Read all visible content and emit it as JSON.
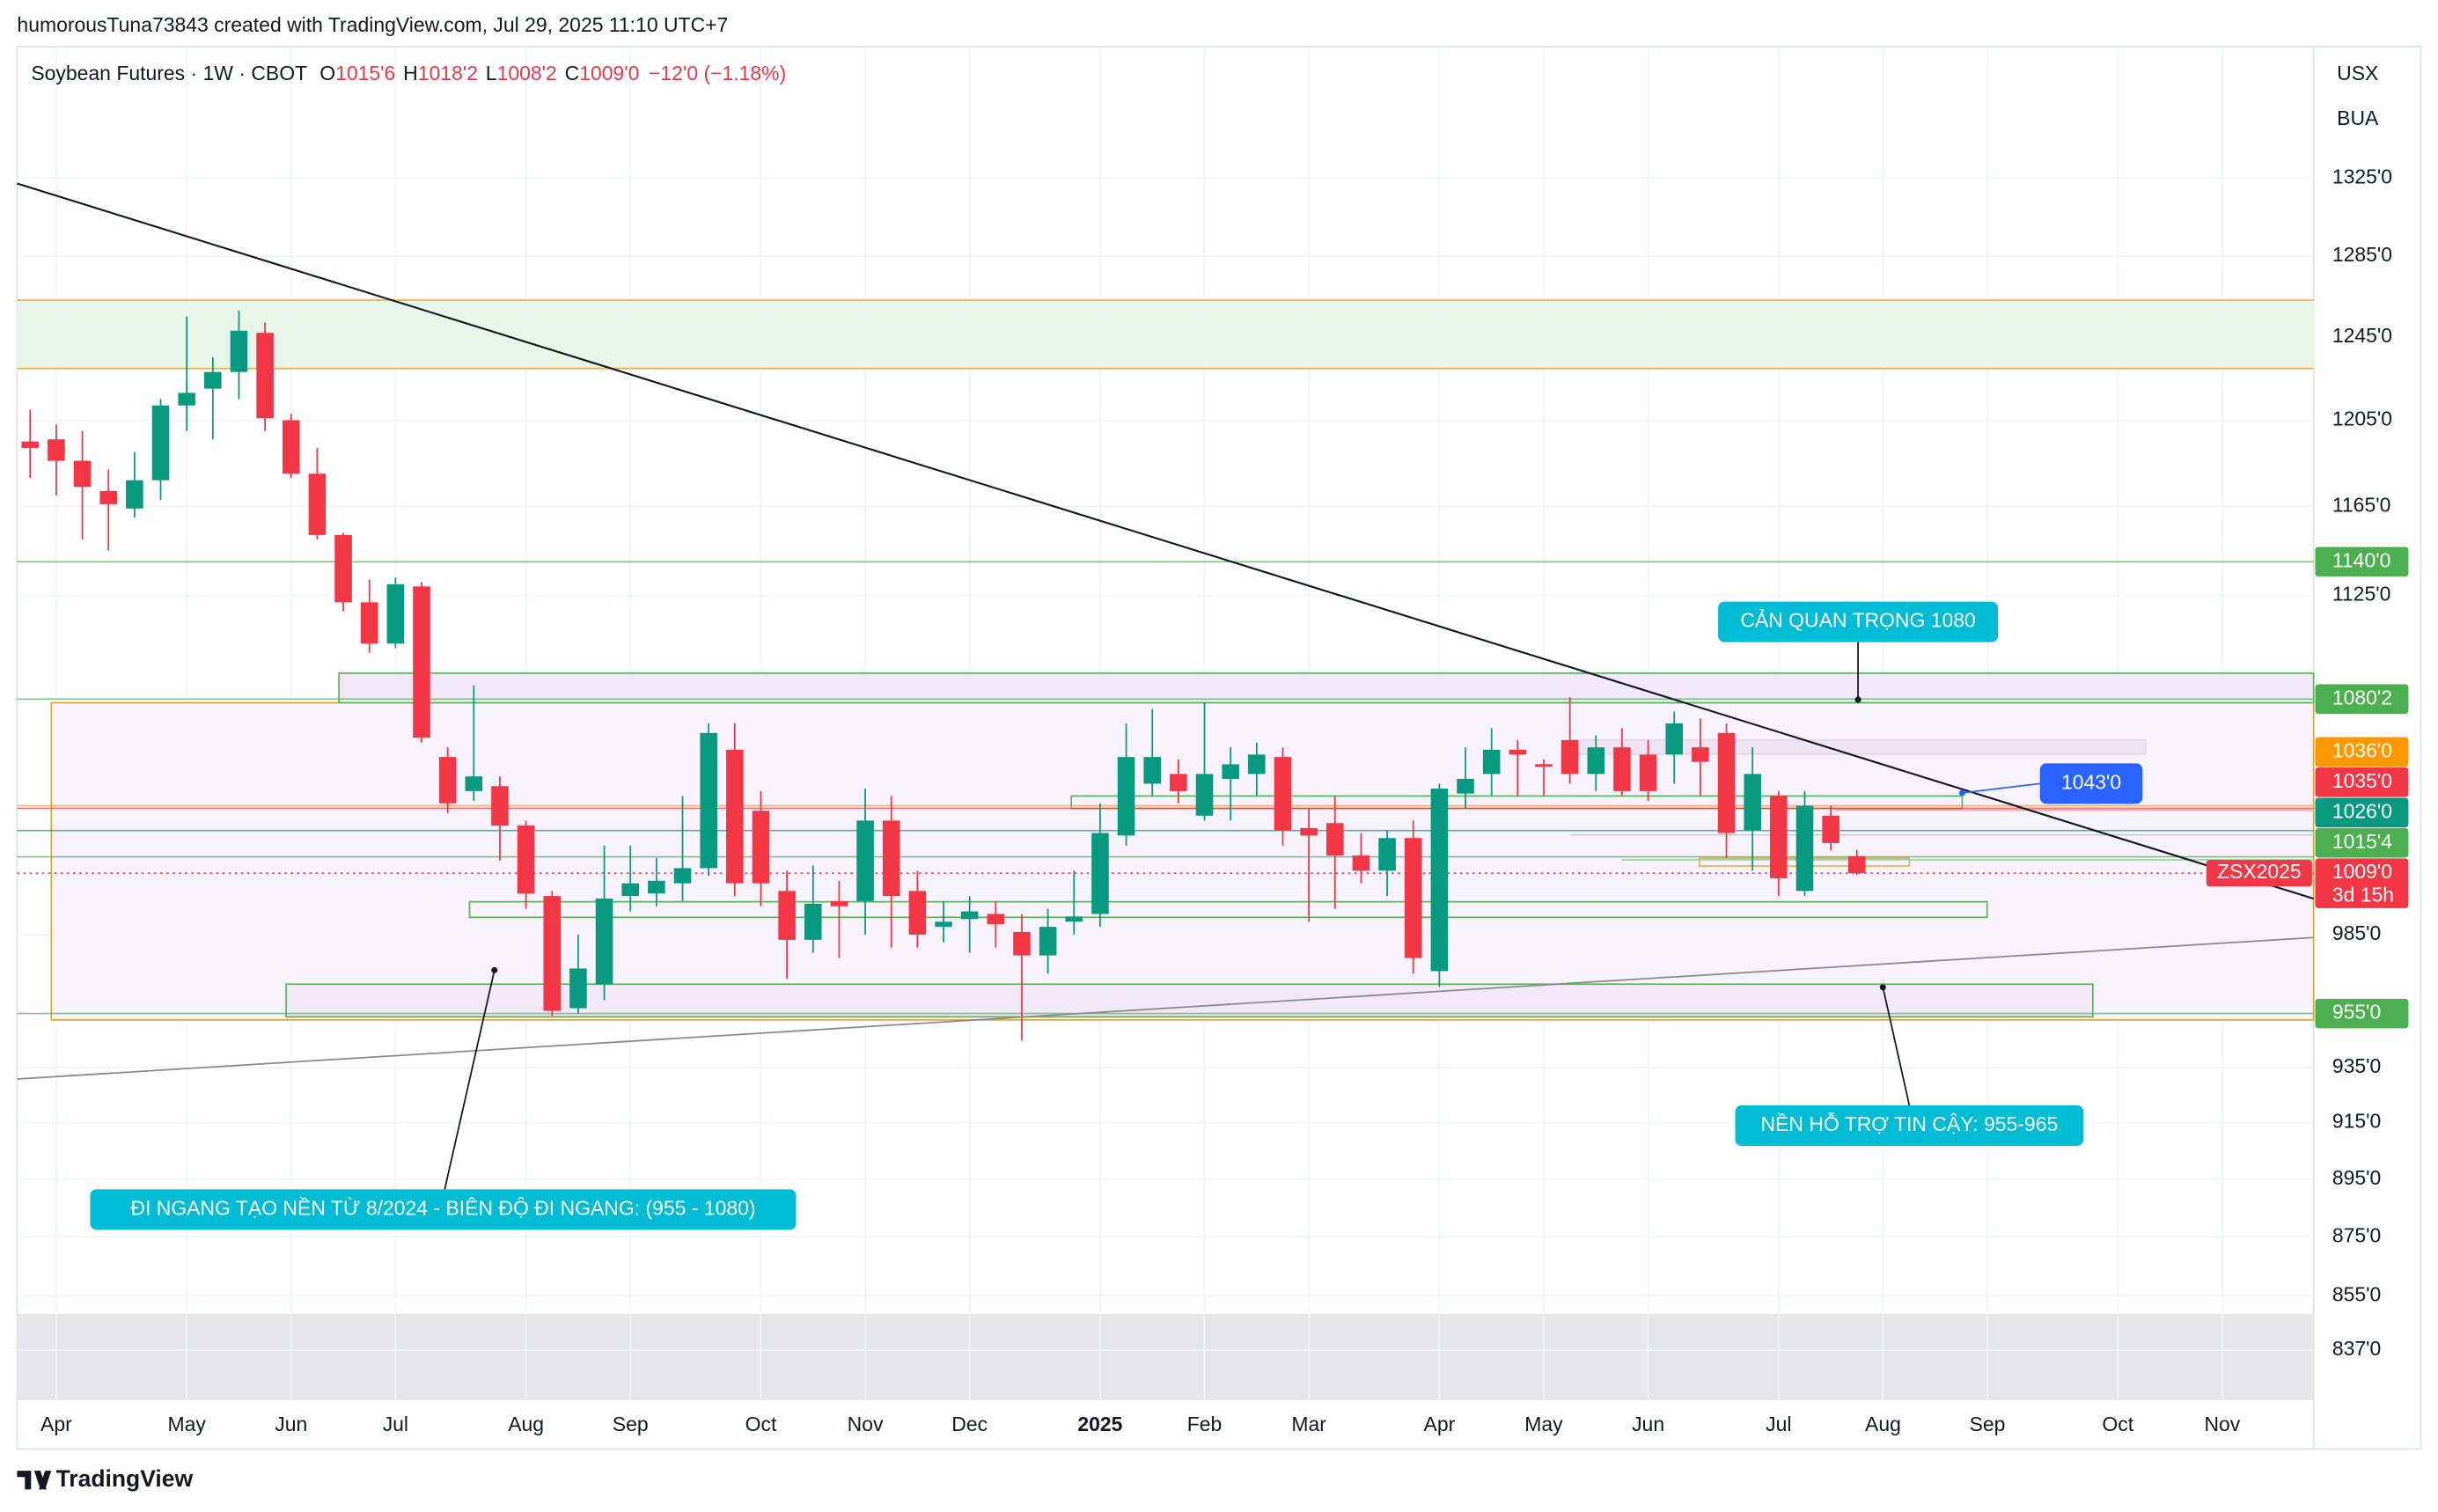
{
  "header": "humorousTuna73843 created with TradingView.com, Jul 29, 2025 11:10 UTC+7",
  "chart_data": {
    "type": "candlestick",
    "title": "Soybean Futures · 1W · CBOT",
    "ohlc_legend": [
      {
        "key": "O",
        "text": "1015'6"
      },
      {
        "key": "H",
        "text": "1018'2"
      },
      {
        "key": "L",
        "text": "1008'2"
      },
      {
        "key": "C",
        "text": "1009'0"
      }
    ],
    "change": "−12'0 (−1.18%)",
    "currency": "USX",
    "unit": "BUA",
    "categories": [
      null,
      "Apr",
      null,
      null,
      null,
      null,
      "May",
      null,
      null,
      null,
      "Jun",
      null,
      null,
      null,
      "Jul",
      null,
      null,
      null,
      null,
      "Aug",
      null,
      null,
      null,
      "Sep",
      null,
      null,
      null,
      null,
      "Oct",
      null,
      null,
      null,
      "Nov",
      null,
      null,
      null,
      "Dec",
      null,
      null,
      null,
      null,
      "2025",
      null,
      null,
      null,
      "Feb",
      null,
      null,
      null,
      "Mar",
      null,
      null,
      null,
      null,
      "Apr",
      null,
      null,
      null,
      "May",
      null,
      null,
      null,
      "Jun",
      null,
      null,
      null,
      null,
      "Jul",
      null,
      null,
      null,
      "Aug",
      null,
      null,
      null,
      "Sep",
      null,
      null,
      null,
      null,
      "Oct",
      null,
      null,
      null,
      "Nov",
      null,
      null,
      null
    ],
    "open": [
      1195,
      1196,
      1186,
      1172,
      1164,
      1177,
      1212,
      1220,
      1228,
      1247,
      1205,
      1180,
      1152,
      1122,
      1104,
      1129,
      1056,
      1042,
      1044,
      1028,
      1000,
      957,
      966,
      1000,
      1001,
      1005,
      1011,
      1059,
      1034,
      1002,
      983,
      998,
      998,
      1030,
      1002,
      988,
      991,
      993,
      986,
      977,
      990,
      993,
      1024,
      1045,
      1049,
      1032,
      1047,
      1049,
      1056,
      1027,
      1029,
      1016,
      1010,
      1023,
      971,
      1041,
      1049,
      1059,
      1053,
      1063,
      1049,
      1060,
      1057,
      1057,
      1060,
      1066,
      1026,
      1040,
      1002,
      1032,
      1015.75,
      null,
      null,
      null,
      null,
      null,
      null,
      null,
      null,
      null,
      null,
      null,
      null,
      null,
      null,
      null,
      null,
      null
    ],
    "high": [
      1210,
      1203,
      1200,
      1182,
      1190,
      1215,
      1255,
      1235,
      1258,
      1252,
      1208,
      1192,
      1153,
      1132,
      1133,
      1131,
      1060,
      1086,
      1048,
      1030,
      1002,
      985,
      1020,
      1020,
      1015,
      1040,
      1070,
      1070,
      1042,
      1010,
      1012,
      1006,
      1043,
      1040,
      1010,
      998,
      1000,
      998,
      993,
      995,
      1010,
      1037,
      1070,
      1076,
      1055,
      1079,
      1060,
      1062,
      1060,
      1035,
      1040,
      1025,
      1026,
      1030,
      1045,
      1060,
      1068,
      1063,
      1055,
      1081,
      1065,
      1068,
      1063,
      1075,
      1072,
      1070,
      1060,
      1042,
      1042,
      1036,
      1018.25,
      null,
      null,
      null,
      null,
      null,
      null,
      null,
      null,
      null,
      null,
      null,
      null,
      null,
      null,
      null,
      null,
      null
    ],
    "low": [
      1178,
      1170,
      1150,
      1145,
      1160,
      1168,
      1200,
      1196,
      1215,
      1200,
      1178,
      1150,
      1118,
      1100,
      1102,
      1062,
      1033,
      1038,
      1014,
      995,
      954,
      955,
      960,
      994,
      996,
      998,
      1008,
      1000,
      996,
      968,
      978,
      976,
      985,
      980,
      980,
      982,
      978,
      980,
      945,
      970,
      985,
      988,
      1020,
      1040,
      1037,
      1030,
      1030,
      1040,
      1020,
      990,
      995,
      1005,
      1000,
      970,
      965,
      1035,
      1040,
      1040,
      1040,
      1045,
      1042,
      1040,
      1038,
      1045,
      1040,
      1015,
      1010,
      1000,
      1000,
      1018,
      1008.25,
      null,
      null,
      null,
      null,
      null,
      null,
      null,
      null,
      null,
      null,
      null,
      null,
      null,
      null,
      null,
      null,
      null
    ],
    "close": [
      1192,
      1186,
      1174,
      1166,
      1177,
      1212,
      1218,
      1228,
      1248,
      1206,
      1180,
      1152,
      1122,
      1104,
      1130,
      1064,
      1037,
      1048,
      1028,
      1001,
      956,
      972,
      999,
      1005,
      1006,
      1011,
      1066,
      1005,
      1005,
      983,
      997,
      996,
      1030,
      1000,
      985,
      990,
      994,
      989,
      977,
      988,
      992,
      1025,
      1056,
      1056,
      1042,
      1049,
      1053,
      1057,
      1026,
      1024,
      1016,
      1010,
      1023,
      976,
      1043,
      1047,
      1059,
      1057,
      1052,
      1049,
      1060,
      1042,
      1042,
      1070,
      1054,
      1025,
      1049,
      1007,
      1036,
      1021,
      1009,
      null,
      null,
      null,
      null,
      null,
      null,
      null,
      null,
      null,
      null,
      null,
      null,
      null,
      null,
      null,
      null,
      null
    ],
    "up_color": "#089981",
    "down_color": "#f23645",
    "ylim": [
      821,
      1395
    ],
    "log_scale": true,
    "grid": true,
    "yticks": [
      {
        "value": 837,
        "label": "837'0"
      },
      {
        "value": 855,
        "label": "855'0"
      },
      {
        "value": 875,
        "label": "875'0"
      },
      {
        "value": 895,
        "label": "895'0"
      },
      {
        "value": 915,
        "label": "915'0"
      },
      {
        "value": 935,
        "label": "935'0"
      },
      {
        "value": 985,
        "label": "985'0"
      },
      {
        "value": 1125,
        "label": "1125'0"
      },
      {
        "value": 1165,
        "label": "1165'0"
      },
      {
        "value": 1205,
        "label": "1205'0"
      },
      {
        "value": 1245,
        "label": "1245'0"
      },
      {
        "value": 1285,
        "label": "1285'0"
      },
      {
        "value": 1325,
        "label": "1325'0"
      }
    ],
    "levels": [
      {
        "value": 1140,
        "label": "1140'0",
        "color": "#4caf50"
      },
      {
        "value": 1080.25,
        "label": "1080'2",
        "color": "#4caf50"
      },
      {
        "value": 1036,
        "label": "1036'0",
        "color": "#ff9800"
      },
      {
        "value": 1035,
        "label": "1035'0",
        "color": "#f23645"
      },
      {
        "value": 1026,
        "label": "1026'0",
        "color": "#089981"
      },
      {
        "value": 1015.5,
        "label": "1015'4",
        "color": "#4caf50"
      },
      {
        "value": 1009,
        "label": "1009'0",
        "color": "#f23645"
      },
      {
        "value": 955,
        "label": "955'0",
        "color": "#4caf50"
      }
    ],
    "symbol_code": "ZSX2025",
    "countdown": "3d 15h",
    "annotations": [
      "CẢN QUAN TRỌNG 1080",
      "1043'0",
      "NỀN HỖ TRỢ TIN CẬY: 955-965",
      "ĐI NGANG TẠO NỀN TỪ 8/2024 - BIÊN ĐỘ ĐI NGANG: (955 - 1080)"
    ]
  },
  "footer": "TradingView"
}
